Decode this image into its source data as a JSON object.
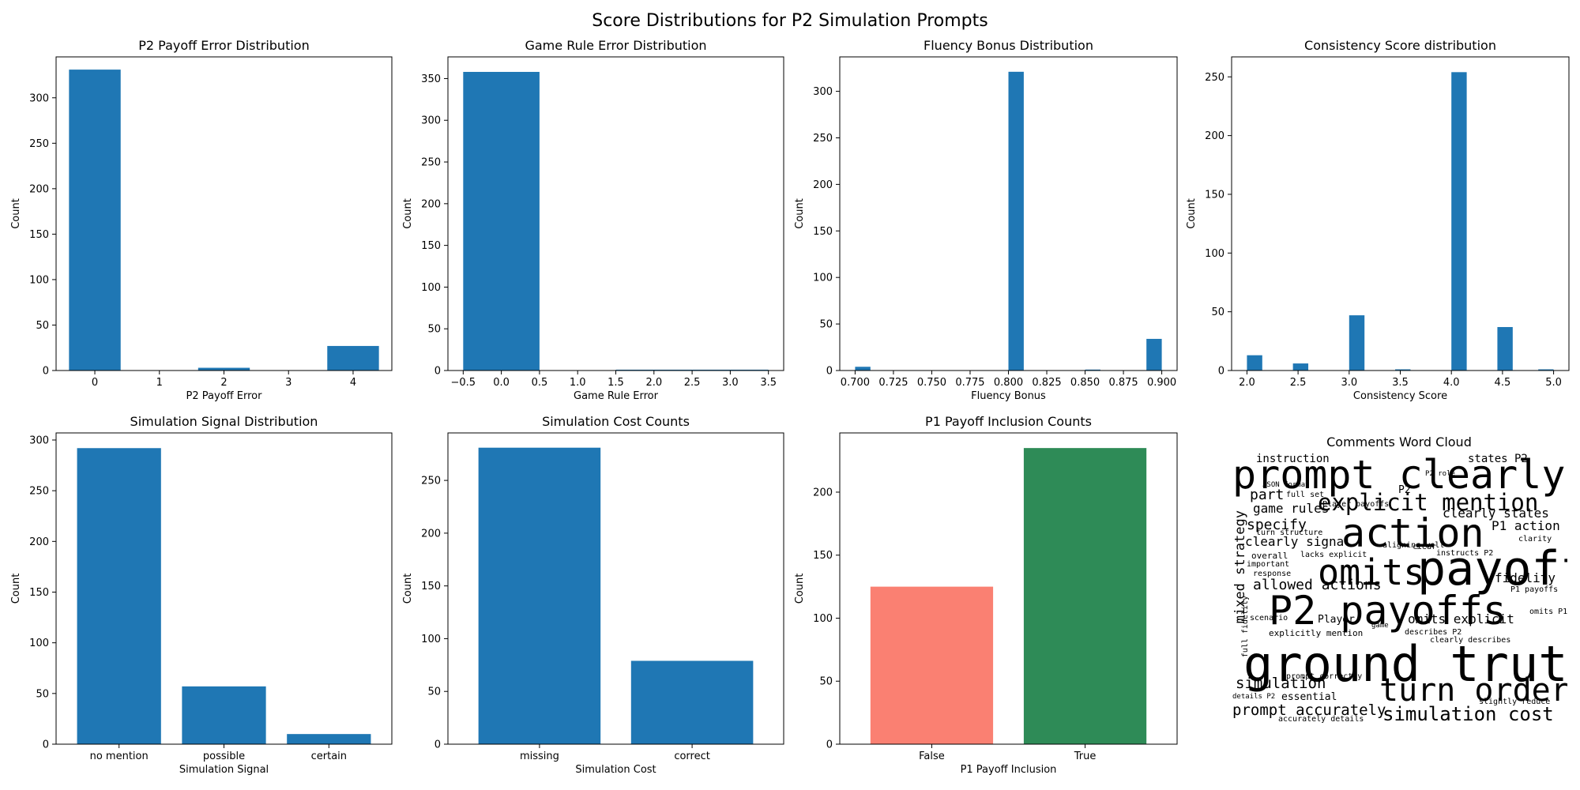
{
  "figure_title": "Score Distributions for P2 Simulation Prompts",
  "colors": {
    "bar": "#1f77b4",
    "false_bar": "#fa8072",
    "true_bar": "#2e8b57"
  },
  "chart_data": [
    {
      "id": "p2-payoff",
      "type": "bar",
      "title": "P2 Payoff Error Distribution",
      "xlabel": "P2 Payoff Error",
      "ylabel": "Count",
      "xlim": [
        -0.6,
        4.6
      ],
      "ylim": [
        0,
        345
      ],
      "xticks": [
        0,
        1,
        2,
        3,
        4
      ],
      "xtick_labels": [
        "0",
        "1",
        "2",
        "3",
        "4"
      ],
      "yticks": [
        0,
        50,
        100,
        150,
        200,
        250,
        300
      ],
      "bars": [
        {
          "x0": -0.4,
          "x1": 0.4,
          "value": 331
        },
        {
          "x0": 1.6,
          "x1": 2.4,
          "value": 3
        },
        {
          "x0": 3.6,
          "x1": 4.4,
          "value": 27
        }
      ]
    },
    {
      "id": "game-rule",
      "type": "bar",
      "title": "Game Rule Error Distribution",
      "xlabel": "Game Rule Error",
      "ylabel": "Count",
      "xlim": [
        -0.7,
        3.7
      ],
      "ylim": [
        0,
        376
      ],
      "xticks": [
        -0.5,
        0,
        0.5,
        1,
        1.5,
        2,
        2.5,
        3,
        3.5
      ],
      "xtick_labels": [
        "−0.5",
        "0.0",
        "0.5",
        "1.0",
        "1.5",
        "2.0",
        "2.5",
        "3.0",
        "3.5"
      ],
      "yticks": [
        0,
        50,
        100,
        150,
        200,
        250,
        300,
        350
      ],
      "bars": [
        {
          "x0": -0.5,
          "x1": 0.5,
          "value": 358
        },
        {
          "x0": 1.5,
          "x1": 2.5,
          "value": 1
        },
        {
          "x0": 2.5,
          "x1": 3.5,
          "value": 1
        }
      ]
    },
    {
      "id": "fluency",
      "type": "bar",
      "title": "Fluency Bonus Distribution",
      "xlabel": "Fluency Bonus",
      "ylabel": "Count",
      "xlim": [
        0.69,
        0.91
      ],
      "ylim": [
        0,
        337
      ],
      "xticks": [
        0.7,
        0.725,
        0.75,
        0.775,
        0.8,
        0.825,
        0.85,
        0.875,
        0.9
      ],
      "xtick_labels": [
        "0.700",
        "0.725",
        "0.750",
        "0.775",
        "0.800",
        "0.825",
        "0.850",
        "0.875",
        "0.900"
      ],
      "yticks": [
        0,
        50,
        100,
        150,
        200,
        250,
        300
      ],
      "bars": [
        {
          "x0": 0.7,
          "x1": 0.71,
          "value": 4
        },
        {
          "x0": 0.8,
          "x1": 0.81,
          "value": 321
        },
        {
          "x0": 0.85,
          "x1": 0.86,
          "value": 1
        },
        {
          "x0": 0.89,
          "x1": 0.9,
          "value": 34
        }
      ]
    },
    {
      "id": "consistency",
      "type": "bar",
      "title": "Consistency Score distribution",
      "xlabel": "Consistency Score",
      "ylabel": "Count",
      "xlim": [
        1.85,
        5.15
      ],
      "ylim": [
        0,
        267
      ],
      "xticks": [
        2,
        2.5,
        3,
        3.5,
        4,
        4.5,
        5
      ],
      "xtick_labels": [
        "2.0",
        "2.5",
        "3.0",
        "3.5",
        "4.0",
        "4.5",
        "5.0"
      ],
      "yticks": [
        0,
        50,
        100,
        150,
        200,
        250
      ],
      "bars": [
        {
          "x0": 2.0,
          "x1": 2.15,
          "value": 13
        },
        {
          "x0": 2.45,
          "x1": 2.6,
          "value": 6
        },
        {
          "x0": 3.0,
          "x1": 3.15,
          "value": 47
        },
        {
          "x0": 3.45,
          "x1": 3.6,
          "value": 1
        },
        {
          "x0": 4.0,
          "x1": 4.15,
          "value": 254
        },
        {
          "x0": 4.45,
          "x1": 4.6,
          "value": 37
        },
        {
          "x0": 4.85,
          "x1": 5.0,
          "value": 1
        }
      ]
    },
    {
      "id": "sim-signal",
      "type": "bar",
      "title": "Simulation Signal Distribution",
      "xlabel": "Simulation Signal",
      "ylabel": "Count",
      "ylim": [
        0,
        307
      ],
      "categories": [
        "no mention",
        "possible",
        "certain"
      ],
      "values": [
        292,
        57,
        10
      ],
      "yticks": [
        0,
        50,
        100,
        150,
        200,
        250,
        300
      ]
    },
    {
      "id": "sim-cost",
      "type": "bar",
      "title": "Simulation Cost Counts",
      "xlabel": "Simulation Cost",
      "ylabel": "Count",
      "ylim": [
        0,
        295
      ],
      "categories": [
        "missing",
        "correct"
      ],
      "values": [
        281,
        79
      ],
      "yticks": [
        0,
        50,
        100,
        150,
        200,
        250
      ]
    },
    {
      "id": "p1-payoff",
      "type": "bar",
      "title": "P1 Payoff Inclusion Counts",
      "xlabel": "P1 Payoff Inclusion",
      "ylabel": "Count",
      "ylim": [
        0,
        247
      ],
      "categories": [
        "False",
        "True"
      ],
      "values": [
        125,
        235
      ],
      "bar_colors": [
        "#fa8072",
        "#2e8b57"
      ],
      "yticks": [
        0,
        50,
        100,
        150,
        200
      ]
    }
  ],
  "wordcloud": {
    "title": "Comments Word Cloud",
    "words": [
      {
        "text": "prompt clearly",
        "color": "#b5de2b"
      },
      {
        "text": "explicit mention",
        "color": "#440154"
      },
      {
        "text": "action",
        "color": "#31688e"
      },
      {
        "text": "omits",
        "color": "#b5de2b"
      },
      {
        "text": "payoff",
        "color": "#440154"
      },
      {
        "text": "P2 payoffs",
        "color": "#21918c"
      },
      {
        "text": "ground truth",
        "color": "#3b528b"
      },
      {
        "text": "turn order",
        "color": "#472d7b"
      },
      {
        "text": "simulation cost",
        "color": "#482878"
      },
      {
        "text": "prompt accurately",
        "color": "#b5de2b"
      },
      {
        "text": "simulation",
        "color": "#3e4989"
      },
      {
        "text": "essential",
        "color": "#35b779"
      },
      {
        "text": "mixed strategy",
        "color": "#440154"
      },
      {
        "text": "allowed actions",
        "color": "#90d743"
      },
      {
        "text": "clearly signal",
        "color": "#b5de2b"
      },
      {
        "text": "specify",
        "color": "#3e4989"
      },
      {
        "text": "game rules",
        "color": "#3e4989"
      },
      {
        "text": "part",
        "color": "#b5de2b"
      },
      {
        "text": "instruction",
        "color": "#3e4989"
      },
      {
        "text": "states P2",
        "color": "#35b779"
      },
      {
        "text": "clearly states",
        "color": "#35b779"
      },
      {
        "text": "P1 action",
        "color": "#35b779"
      },
      {
        "text": "fidelity",
        "color": "#21918c"
      },
      {
        "text": "omits explicit",
        "color": "#b5de2b"
      },
      {
        "text": "Player",
        "color": "#482878"
      },
      {
        "text": "explicitly mention",
        "color": "#472d7b"
      },
      {
        "text": "full fidelity",
        "color": "#3e4989"
      },
      {
        "text": "overall",
        "color": "#482878"
      },
      {
        "text": "important",
        "color": "#21918c"
      },
      {
        "text": "response",
        "color": "#31688e"
      },
      {
        "text": "turn structure",
        "color": "#440154"
      },
      {
        "text": "Player payoffs",
        "color": "#35b779"
      },
      {
        "text": "full set",
        "color": "#3e4989"
      },
      {
        "text": "JSON format",
        "color": "#440154"
      },
      {
        "text": "lacks explicit",
        "color": "#440154"
      },
      {
        "text": "aligning well",
        "color": "#482878"
      },
      {
        "text": "instructs P2",
        "color": "#3e4989"
      },
      {
        "text": "clarity",
        "color": "#90d743"
      },
      {
        "text": "P1 payoffs",
        "color": "#35b779"
      },
      {
        "text": "omits P1",
        "color": "#21918c"
      },
      {
        "text": "describes P2",
        "color": "#35b779"
      },
      {
        "text": "clearly describes",
        "color": "#472d7b"
      },
      {
        "text": "prompt correctly",
        "color": "#31688e"
      },
      {
        "text": "slightly reduce",
        "color": "#472d7b"
      },
      {
        "text": "accurately details",
        "color": "#35b779"
      },
      {
        "text": "details P2",
        "color": "#3e4989"
      },
      {
        "text": "scenario",
        "color": "#b5de2b"
      },
      {
        "text": "P2 role",
        "color": "#440154"
      },
      {
        "text": "game",
        "color": "#31688e"
      },
      {
        "text": "clear",
        "color": "#440154"
      },
      {
        "text": "P2",
        "color": "#440154"
      }
    ]
  }
}
